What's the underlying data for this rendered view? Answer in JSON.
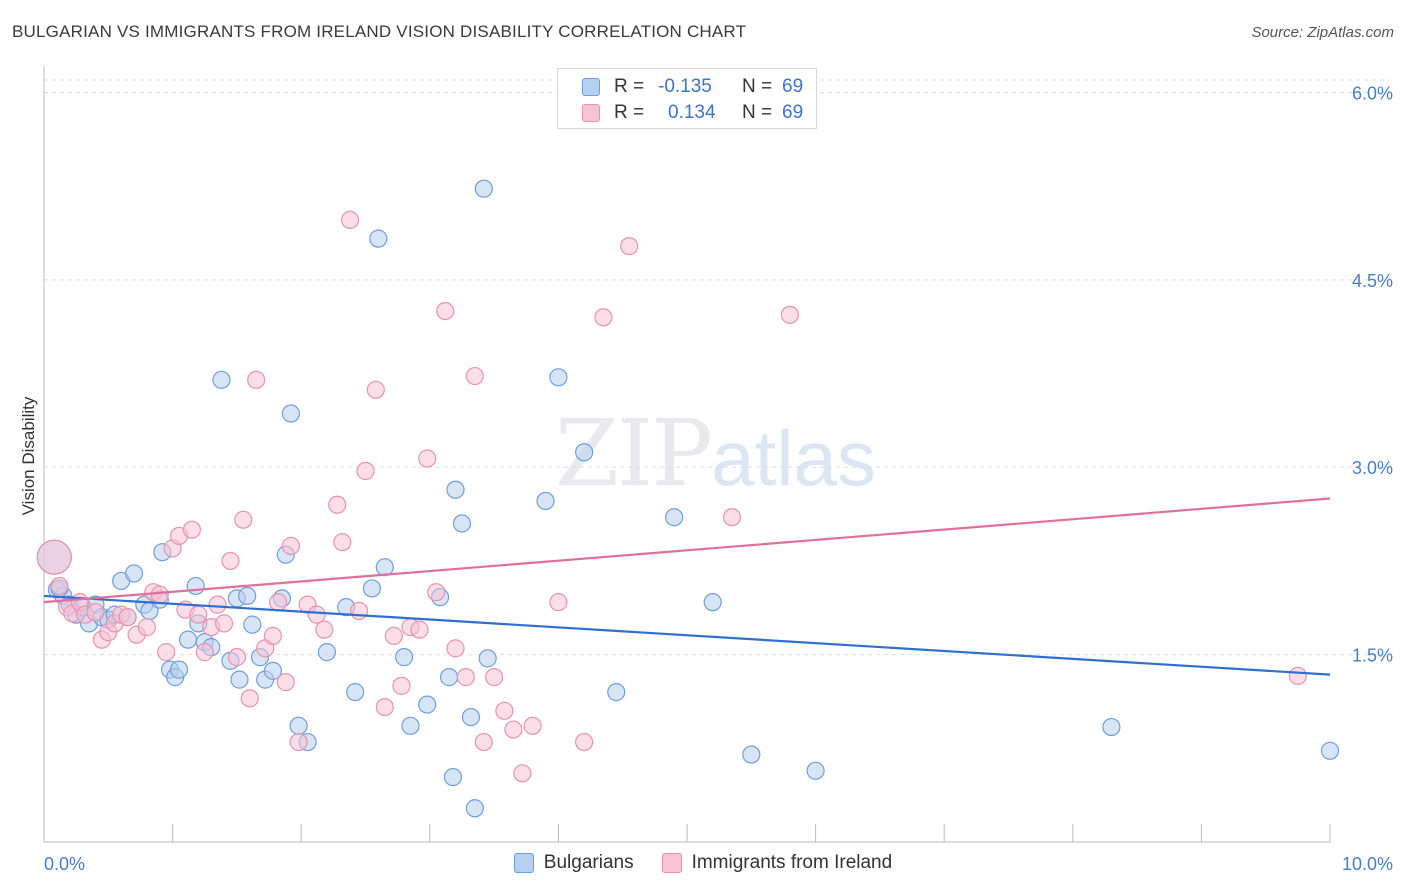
{
  "title": "BULGARIAN VS IMMIGRANTS FROM IRELAND VISION DISABILITY CORRELATION CHART",
  "source": "Source: ZipAtlas.com",
  "watermark": {
    "zip": "ZIP",
    "atlas": "atlas"
  },
  "legend": {
    "rows": [
      {
        "r_label": "R =",
        "r_value": "-0.135",
        "n_label": "N =",
        "n_value": "69"
      },
      {
        "r_label": "R =",
        "r_value": "0.134",
        "n_label": "N =",
        "n_value": "69"
      }
    ]
  },
  "colors": {
    "blue_fill": "#b7cff0",
    "blue_stroke": "#6f9ee0",
    "blue_line": "#2f6fd0",
    "pink_fill": "#f7c3d3",
    "pink_stroke": "#e893ad",
    "pink_line": "#e0709a",
    "grid": "#dddddd",
    "tick_text": "#4a7cc9"
  },
  "chart_data": {
    "type": "scatter",
    "title": "BULGARIAN VS IMMIGRANTS FROM IRELAND VISION DISABILITY CORRELATION CHART",
    "xlabel": "",
    "ylabel": "Vision Disability",
    "xlim": [
      0,
      10
    ],
    "ylim": [
      0,
      6.1
    ],
    "x_tick_labels": [
      "0.0%",
      "10.0%"
    ],
    "y_ticks": [
      1.5,
      3.0,
      4.5,
      6.0
    ],
    "y_tick_labels": [
      "1.5%",
      "3.0%",
      "4.5%",
      "6.0%"
    ],
    "grid": "horizontal dashed",
    "legend_position": "bottom",
    "series": [
      {
        "name": "Bulgarians",
        "trend": {
          "x": [
            0,
            10
          ],
          "y": [
            1.97,
            1.34
          ]
        },
        "points": [
          [
            0.08,
            2.28
          ],
          [
            0.1,
            2.02
          ],
          [
            0.15,
            1.97
          ],
          [
            0.2,
            1.9
          ],
          [
            0.25,
            1.82
          ],
          [
            0.3,
            1.88
          ],
          [
            0.35,
            1.75
          ],
          [
            0.4,
            1.9
          ],
          [
            0.45,
            1.8
          ],
          [
            0.5,
            1.78
          ],
          [
            0.55,
            1.82
          ],
          [
            0.6,
            2.09
          ],
          [
            0.65,
            1.8
          ],
          [
            0.7,
            2.15
          ],
          [
            0.78,
            1.9
          ],
          [
            0.82,
            1.85
          ],
          [
            0.9,
            1.94
          ],
          [
            0.92,
            2.32
          ],
          [
            0.98,
            1.38
          ],
          [
            1.02,
            1.32
          ],
          [
            1.05,
            1.38
          ],
          [
            1.12,
            1.62
          ],
          [
            1.18,
            2.05
          ],
          [
            1.2,
            1.75
          ],
          [
            1.25,
            1.6
          ],
          [
            1.3,
            1.56
          ],
          [
            1.38,
            3.7
          ],
          [
            1.45,
            1.45
          ],
          [
            1.5,
            1.95
          ],
          [
            1.52,
            1.3
          ],
          [
            1.58,
            1.97
          ],
          [
            1.62,
            1.74
          ],
          [
            1.68,
            1.48
          ],
          [
            1.72,
            1.3
          ],
          [
            1.78,
            1.37
          ],
          [
            1.85,
            1.95
          ],
          [
            1.88,
            2.3
          ],
          [
            1.92,
            3.43
          ],
          [
            1.98,
            0.93
          ],
          [
            2.05,
            0.8
          ],
          [
            2.2,
            1.52
          ],
          [
            2.35,
            1.88
          ],
          [
            2.42,
            1.2
          ],
          [
            2.55,
            2.03
          ],
          [
            2.6,
            4.83
          ],
          [
            2.65,
            2.2
          ],
          [
            2.8,
            1.48
          ],
          [
            2.85,
            0.93
          ],
          [
            2.98,
            1.1
          ],
          [
            3.08,
            1.96
          ],
          [
            3.15,
            1.32
          ],
          [
            3.18,
            0.52
          ],
          [
            3.2,
            2.82
          ],
          [
            3.25,
            2.55
          ],
          [
            3.32,
            1.0
          ],
          [
            3.35,
            0.27
          ],
          [
            3.42,
            5.23
          ],
          [
            3.45,
            1.47
          ],
          [
            3.9,
            2.73
          ],
          [
            4.0,
            3.72
          ],
          [
            4.2,
            3.12
          ],
          [
            4.45,
            1.2
          ],
          [
            4.9,
            2.6
          ],
          [
            5.2,
            1.92
          ],
          [
            5.5,
            0.7
          ],
          [
            6.0,
            0.57
          ],
          [
            8.3,
            0.92
          ],
          [
            10.0,
            0.73
          ],
          [
            0.12,
            2.03
          ]
        ]
      },
      {
        "name": "Immigrants from Ireland",
        "trend": {
          "x": [
            0,
            10
          ],
          "y": [
            1.92,
            2.75
          ]
        },
        "points": [
          [
            0.08,
            2.28
          ],
          [
            0.12,
            2.05
          ],
          [
            0.18,
            1.88
          ],
          [
            0.22,
            1.83
          ],
          [
            0.28,
            1.92
          ],
          [
            0.32,
            1.82
          ],
          [
            0.4,
            1.84
          ],
          [
            0.45,
            1.62
          ],
          [
            0.5,
            1.68
          ],
          [
            0.55,
            1.75
          ],
          [
            0.6,
            1.82
          ],
          [
            0.65,
            1.8
          ],
          [
            0.72,
            1.66
          ],
          [
            0.8,
            1.72
          ],
          [
            0.85,
            2.0
          ],
          [
            0.9,
            1.98
          ],
          [
            0.95,
            1.52
          ],
          [
            1.0,
            2.35
          ],
          [
            1.05,
            2.45
          ],
          [
            1.1,
            1.86
          ],
          [
            1.15,
            2.5
          ],
          [
            1.2,
            1.82
          ],
          [
            1.25,
            1.52
          ],
          [
            1.3,
            1.72
          ],
          [
            1.35,
            1.9
          ],
          [
            1.4,
            1.75
          ],
          [
            1.45,
            2.25
          ],
          [
            1.5,
            1.48
          ],
          [
            1.55,
            2.58
          ],
          [
            1.6,
            1.15
          ],
          [
            1.65,
            3.7
          ],
          [
            1.72,
            1.55
          ],
          [
            1.78,
            1.65
          ],
          [
            1.82,
            1.92
          ],
          [
            1.88,
            1.28
          ],
          [
            1.92,
            2.37
          ],
          [
            1.98,
            0.8
          ],
          [
            2.05,
            1.9
          ],
          [
            2.12,
            1.82
          ],
          [
            2.18,
            1.7
          ],
          [
            2.28,
            2.7
          ],
          [
            2.32,
            2.4
          ],
          [
            2.38,
            4.98
          ],
          [
            2.45,
            1.85
          ],
          [
            2.5,
            2.97
          ],
          [
            2.58,
            3.62
          ],
          [
            2.65,
            1.08
          ],
          [
            2.72,
            1.65
          ],
          [
            2.78,
            1.25
          ],
          [
            2.85,
            1.72
          ],
          [
            2.92,
            1.7
          ],
          [
            2.98,
            3.07
          ],
          [
            3.05,
            2.0
          ],
          [
            3.12,
            4.25
          ],
          [
            3.2,
            1.55
          ],
          [
            3.28,
            1.32
          ],
          [
            3.35,
            3.73
          ],
          [
            3.42,
            0.8
          ],
          [
            3.5,
            1.32
          ],
          [
            3.58,
            1.05
          ],
          [
            3.65,
            0.9
          ],
          [
            3.72,
            0.55
          ],
          [
            3.8,
            0.93
          ],
          [
            4.0,
            1.92
          ],
          [
            4.2,
            0.8
          ],
          [
            4.35,
            4.2
          ],
          [
            4.55,
            4.77
          ],
          [
            5.35,
            2.6
          ],
          [
            5.8,
            4.22
          ]
        ]
      }
    ],
    "extra_point": {
      "series": "Immigrants from Ireland",
      "x": 9.75,
      "y": 1.33
    }
  },
  "bottom_legend": {
    "items": [
      {
        "label": "Bulgarians"
      },
      {
        "label": "Immigrants from Ireland"
      }
    ]
  }
}
